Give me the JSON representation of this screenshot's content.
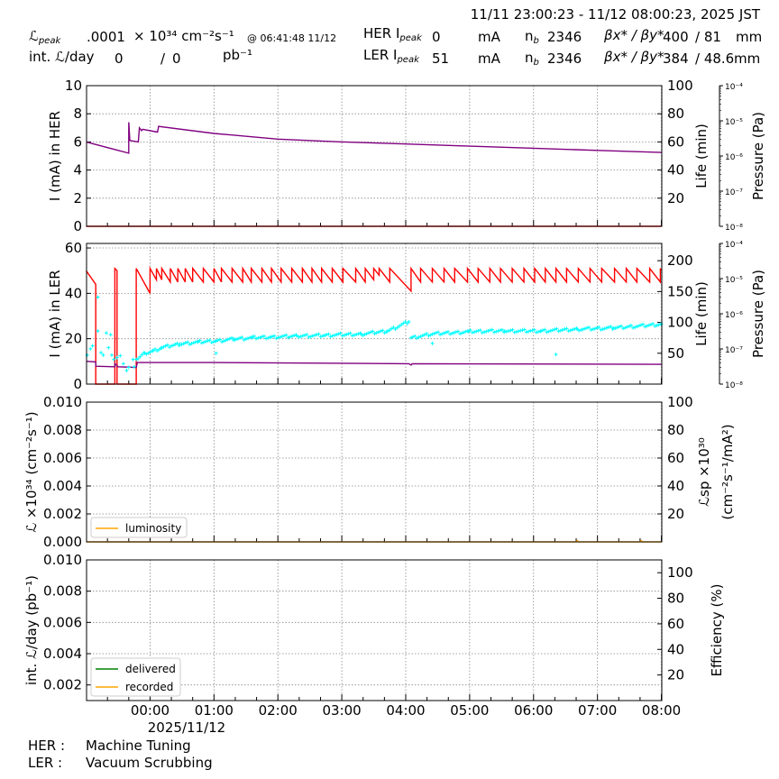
{
  "header": {
    "range": "11/11 23:00:23 - 11/12 08:00:23, 2025 JST",
    "lpeak_symbol": "ℒ",
    "lpeak_sub": "peak",
    "lpeak_value": ".0001",
    "lpeak_unit": "× 10³⁴ cm⁻²s⁻¹",
    "lpeak_time": "@ 06:41:48 11/12",
    "intl_label": "int. ℒ/day",
    "intl_delivered": "0",
    "intl_slash": "/",
    "intl_recorded": "0",
    "intl_unit": "pb⁻¹",
    "her_label": "HER I",
    "her_sub": "peak",
    "her_value": "0",
    "her_unit": "mA",
    "her_nb_label": "n",
    "nb_sub": "b",
    "her_nb": "2346",
    "beta_label": "βx* / βy*",
    "her_beta": "400",
    "her_beta_y": "/ 81",
    "her_beta_unit": "mm",
    "ler_label": "LER I",
    "ler_sub": "peak",
    "ler_value": "51",
    "ler_unit": "mA",
    "ler_nb": "2346",
    "ler_beta": "384",
    "ler_beta_y": "/ 48.6",
    "ler_beta_unit": "mm"
  },
  "footer": {
    "her_label": "HER :",
    "her_status": "Machine Tuning",
    "ler_label": "LER :",
    "ler_status": "Vacuum Scrubbing"
  },
  "colors": {
    "her_current": "#ff0000",
    "ler_current": "#ff0000",
    "life": "#800080",
    "ler_life_points": "#00ffff",
    "luminosity": "#ffa500",
    "delivered": "#008000",
    "recorded": "#ffa500",
    "grid": "#888888"
  },
  "chart_data": [
    {
      "type": "line",
      "ylabel": "I (mA) in HER",
      "y2label": "Life (min)",
      "y3label": "Pressure (Pa)",
      "ylim": [
        0,
        10
      ],
      "y2lim": [
        0,
        100
      ],
      "y3lim": [
        1e-08,
        0.0001
      ],
      "y3scale": "log",
      "yticks": [
        "0",
        "2",
        "4",
        "6",
        "8",
        "10"
      ],
      "y2ticks": [
        "20",
        "40",
        "60",
        "80",
        "100"
      ],
      "y3ticks": [
        "10⁻⁸",
        "10⁻⁷",
        "10⁻⁶",
        "10⁻⁵",
        "10⁻⁴"
      ],
      "grid": true,
      "series": [
        {
          "key": "her_current",
          "axis": "left",
          "style": "line",
          "points": [
            [
              "23:00",
              0
            ],
            [
              "08:00",
              0
            ]
          ]
        },
        {
          "key": "life",
          "axis": "right",
          "style": "line",
          "points": [
            [
              "23:00",
              60
            ],
            [
              "23:40",
              52
            ],
            [
              "23:40",
              74
            ],
            [
              "23:41",
              61
            ],
            [
              "23:49",
              60
            ],
            [
              "23:50",
              70
            ],
            [
              "23:52",
              68
            ],
            [
              "23:53",
              69
            ],
            [
              "24:07",
              67
            ],
            [
              "24:08",
              71
            ],
            [
              "01:00",
              66
            ],
            [
              "02:00",
              62
            ],
            [
              "03:00",
              60
            ],
            [
              "04:00",
              58.5
            ],
            [
              "05:00",
              57
            ],
            [
              "06:00",
              55.5
            ],
            [
              "07:00",
              54
            ],
            [
              "08:00",
              52.5
            ]
          ]
        }
      ]
    },
    {
      "type": "line",
      "ylabel": "I (mA) in LER",
      "y2label": "Life (min)",
      "y3label": "Pressure (Pa)",
      "ylim": [
        0,
        62
      ],
      "y2lim": [
        0,
        228
      ],
      "y3lim": [
        1e-08,
        0.0001
      ],
      "y3scale": "log",
      "yticks": [
        "0",
        "20",
        "40",
        "60"
      ],
      "y2ticks": [
        "50",
        "100",
        "150",
        "200"
      ],
      "y3ticks": [
        "10⁻⁸",
        "10⁻⁷",
        "10⁻⁶",
        "10⁻⁵",
        "10⁻⁴"
      ],
      "grid": true,
      "series": [
        {
          "key": "ler_current",
          "axis": "left",
          "style": "line",
          "points": [
            [
              "23:00",
              50
            ],
            [
              "23:09",
              44
            ],
            [
              "23:09",
              0
            ],
            [
              "23:27",
              0
            ],
            [
              "23:27",
              51
            ],
            [
              "23:29",
              50
            ],
            [
              "23:29",
              0
            ],
            [
              "23:47",
              0
            ],
            [
              "23:47",
              51
            ],
            [
              "24:00",
              40
            ],
            [
              "24:00",
              51
            ],
            [
              "24:06",
              46
            ],
            [
              "24:06",
              51
            ],
            [
              "24:11",
              46
            ],
            [
              "24:11",
              51
            ],
            [
              "24:19",
              45
            ],
            [
              "24:19",
              51
            ],
            [
              "24:26",
              45
            ],
            [
              "24:26",
              51
            ],
            [
              "24:33",
              45
            ],
            [
              "24:33",
              51
            ],
            [
              "24:40",
              45
            ],
            [
              "24:40",
              51
            ],
            [
              "24:50",
              45
            ],
            [
              "24:50",
              51
            ],
            [
              "01:00",
              45
            ],
            [
              "01:00",
              51
            ],
            [
              "01:07",
              45
            ],
            [
              "01:07",
              51
            ],
            [
              "01:17",
              45
            ],
            [
              "01:17",
              51
            ],
            [
              "01:27",
              45
            ],
            [
              "01:27",
              51
            ],
            [
              "01:35",
              45
            ],
            [
              "01:35",
              51
            ],
            [
              "01:45",
              45
            ],
            [
              "01:45",
              51
            ],
            [
              "01:54",
              45
            ],
            [
              "01:54",
              51
            ],
            [
              "02:03",
              45
            ],
            [
              "02:03",
              51
            ],
            [
              "02:13",
              45
            ],
            [
              "02:13",
              51
            ],
            [
              "02:23",
              45
            ],
            [
              "02:23",
              51
            ],
            [
              "02:32",
              45
            ],
            [
              "02:32",
              51
            ],
            [
              "02:41",
              45
            ],
            [
              "02:41",
              51
            ],
            [
              "02:51",
              45
            ],
            [
              "02:51",
              51
            ],
            [
              "03:01",
              45
            ],
            [
              "03:01",
              51
            ],
            [
              "03:13",
              45
            ],
            [
              "03:13",
              51
            ],
            [
              "03:22",
              45
            ],
            [
              "03:22",
              51
            ],
            [
              "03:30",
              46
            ],
            [
              "03:30",
              51
            ],
            [
              "03:35",
              48
            ],
            [
              "03:35",
              51
            ],
            [
              "03:45",
              45
            ],
            [
              "03:45",
              51
            ],
            [
              "04:05",
              41
            ],
            [
              "04:05",
              51
            ],
            [
              "04:14",
              45
            ],
            [
              "04:14",
              51
            ],
            [
              "04:25",
              45
            ],
            [
              "04:25",
              51
            ],
            [
              "04:36",
              45
            ],
            [
              "04:36",
              51
            ],
            [
              "04:46",
              45
            ],
            [
              "04:46",
              51
            ],
            [
              "04:58",
              45
            ],
            [
              "04:58",
              51
            ],
            [
              "05:08",
              45
            ],
            [
              "05:08",
              51
            ],
            [
              "05:19",
              45
            ],
            [
              "05:19",
              51
            ],
            [
              "05:29",
              45
            ],
            [
              "05:29",
              51
            ],
            [
              "05:40",
              45
            ],
            [
              "05:40",
              51
            ],
            [
              "05:51",
              45
            ],
            [
              "05:51",
              51
            ],
            [
              "06:01",
              45
            ],
            [
              "06:01",
              51
            ],
            [
              "06:11",
              45
            ],
            [
              "06:11",
              51
            ],
            [
              "06:21",
              45
            ],
            [
              "06:21",
              51
            ],
            [
              "06:31",
              45
            ],
            [
              "06:31",
              51
            ],
            [
              "06:42",
              45
            ],
            [
              "06:42",
              51
            ],
            [
              "06:53",
              45
            ],
            [
              "06:53",
              51
            ],
            [
              "07:04",
              45
            ],
            [
              "07:04",
              51
            ],
            [
              "07:16",
              45
            ],
            [
              "07:16",
              51
            ],
            [
              "07:27",
              45
            ],
            [
              "07:27",
              51
            ],
            [
              "07:37",
              45
            ],
            [
              "07:37",
              51
            ],
            [
              "07:49",
              45
            ],
            [
              "07:49",
              51
            ],
            [
              "07:59",
              45
            ],
            [
              "07:59",
              51
            ],
            [
              "08:00",
              50
            ]
          ]
        },
        {
          "key": "life",
          "axis": "right",
          "style": "line",
          "points": [
            [
              "23:00",
              37
            ],
            [
              "23:09",
              36
            ],
            [
              "23:09",
              29
            ],
            [
              "23:27",
              28
            ],
            [
              "23:27",
              33
            ],
            [
              "23:29",
              30
            ],
            [
              "23:30",
              28
            ],
            [
              "23:47",
              27
            ],
            [
              "23:48",
              35
            ],
            [
              "01:00",
              35
            ],
            [
              "04:03",
              33
            ],
            [
              "04:05",
              31
            ],
            [
              "04:06",
              33
            ],
            [
              "08:00",
              32
            ]
          ]
        },
        {
          "key": "ler_life_points",
          "axis": "right",
          "style": "marker",
          "points": [
            [
              "23:01",
              47
            ],
            [
              "23:04",
              57
            ],
            [
              "23:06",
              62
            ],
            [
              "23:11",
              141
            ],
            [
              "23:11",
              86
            ],
            [
              "23:14",
              51
            ],
            [
              "23:16",
              47
            ],
            [
              "23:19",
              83
            ],
            [
              "23:21",
              59
            ],
            [
              "23:23",
              80
            ],
            [
              "23:24",
              47
            ],
            [
              "23:26",
              40
            ],
            [
              "23:29",
              43
            ],
            [
              "23:32",
              46
            ],
            [
              "23:35",
              33
            ],
            [
              "23:38",
              22
            ],
            [
              "23:40",
              27
            ],
            [
              "23:44",
              40
            ],
            [
              "23:45",
              28
            ],
            [
              "23:47",
              40
            ],
            [
              "23:55",
              50
            ],
            [
              "24:03",
              54
            ],
            [
              "24:11",
              59
            ],
            [
              "24:20",
              62
            ],
            [
              "24:28",
              65
            ],
            [
              "24:45",
              68
            ],
            [
              "01:02",
              70
            ],
            [
              "01:19",
              73
            ],
            [
              "01:36",
              75
            ],
            [
              "01:53",
              76
            ],
            [
              "02:18",
              78
            ],
            [
              "02:44",
              79
            ],
            [
              "03:18",
              81
            ],
            [
              "03:43",
              86
            ],
            [
              "04:03",
              101
            ],
            [
              "04:05",
              75
            ],
            [
              "04:25",
              81
            ],
            [
              "04:59",
              85
            ],
            [
              "05:33",
              86
            ],
            [
              "06:07",
              86
            ],
            [
              "06:41",
              89
            ],
            [
              "07:15",
              91
            ],
            [
              "08:00",
              97
            ]
          ],
          "outliers": [
            [
              "01:02",
              50
            ],
            [
              "04:25",
              66
            ],
            [
              "06:21",
              48
            ]
          ]
        }
      ]
    },
    {
      "type": "line",
      "ylabel": "ℒ ×10³⁴ (cm⁻²s⁻¹)",
      "y2label": "ℒsp ×10³⁰",
      "y2label2": "(cm⁻²s⁻¹/mA²)",
      "ylim": [
        0,
        0.01
      ],
      "y2lim": [
        0,
        100
      ],
      "yticks": [
        "0.000",
        "0.002",
        "0.004",
        "0.006",
        "0.008",
        "0.010"
      ],
      "y2ticks": [
        "20",
        "40",
        "60",
        "80",
        "100"
      ],
      "grid": true,
      "legend": {
        "placement": "lower-left",
        "entries": [
          {
            "key": "luminosity",
            "label": "luminosity"
          }
        ]
      },
      "series": [
        {
          "key": "luminosity",
          "axis": "left",
          "style": "line",
          "points": [
            [
              "23:00",
              0
            ],
            [
              "06:40",
              0
            ],
            [
              "06:41",
              0.0001
            ],
            [
              "06:42",
              0
            ],
            [
              "07:40",
              0
            ],
            [
              "07:41",
              0.0001
            ],
            [
              "07:42",
              0
            ],
            [
              "08:00",
              0
            ]
          ]
        }
      ]
    },
    {
      "type": "line",
      "ylabel": "int. ℒ/day (pb⁻¹)",
      "y2label": "Efficiency (%)",
      "ylim": [
        0.001,
        0.01
      ],
      "y2lim": [
        0,
        110
      ],
      "yticks": [
        "0.002",
        "0.004",
        "0.006",
        "0.008",
        "0.010"
      ],
      "y2ticks": [
        "20",
        "40",
        "60",
        "80",
        "100"
      ],
      "grid": true,
      "legend": {
        "placement": "lower-left",
        "entries": [
          {
            "key": "delivered",
            "label": "delivered"
          },
          {
            "key": "recorded",
            "label": "recorded"
          }
        ]
      },
      "series": []
    }
  ],
  "x_axis": {
    "range": [
      "23:00:23",
      "08:00:23"
    ],
    "ticks": [
      "00:00",
      "01:00",
      "02:00",
      "03:00",
      "04:00",
      "05:00",
      "06:00",
      "07:00",
      "08:00"
    ],
    "date_label": "2025/11/12"
  }
}
